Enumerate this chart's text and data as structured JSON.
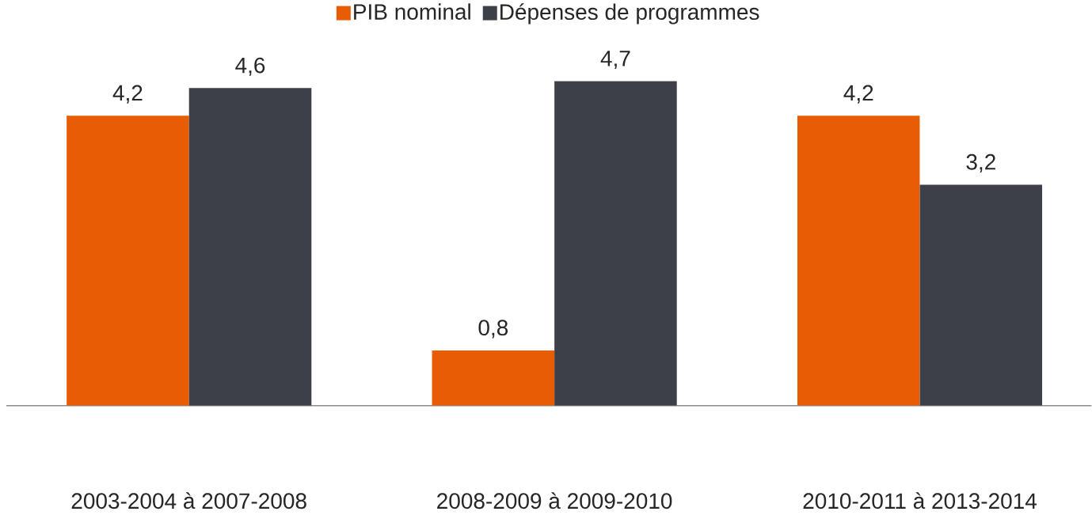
{
  "chart_data": {
    "type": "bar",
    "categories": [
      "2003-2004 à 2007-2008",
      "2008-2009 à 2009-2010",
      "2010-2011 à 2013-2014"
    ],
    "series": [
      {
        "name": "PIB nominal",
        "color": "#e85d04",
        "values": [
          4.2,
          0.8,
          4.2
        ],
        "value_labels": [
          "4,2",
          "0,8",
          "4,2"
        ]
      },
      {
        "name": "Dépenses de programmes",
        "color": "#3d4049",
        "values": [
          4.6,
          4.7,
          3.2
        ],
        "value_labels": [
          "4,6",
          "4,7",
          "3,2"
        ]
      }
    ],
    "legend": "top"
  }
}
